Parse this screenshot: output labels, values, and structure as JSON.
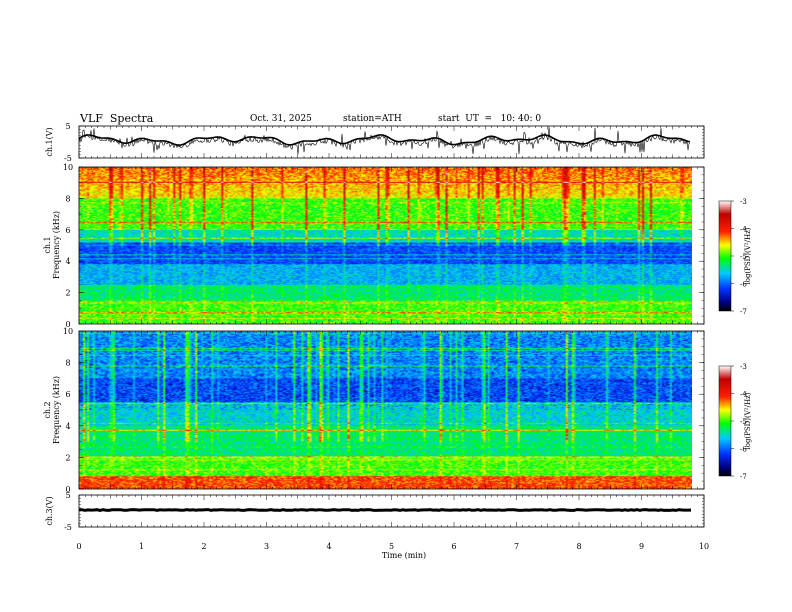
{
  "header": {
    "title": "VLF  Spectra",
    "date": "Oct. 31, 2025",
    "station": "station=ATH",
    "start": "start  UT  =   10: 40: 0"
  },
  "colors": {
    "cmap": [
      "#ffffff",
      "#b00000",
      "#ff0000",
      "#ffff00",
      "#00ff00",
      "#00c0ff",
      "#0000c0",
      "#000000"
    ]
  },
  "chart_data": [
    {
      "type": "line",
      "name": "ch1-waveform",
      "ylabel": "ch.1(V)",
      "ylim": [
        -5,
        5
      ],
      "yticks": [
        "5",
        "-5"
      ],
      "xlim": [
        0,
        10
      ]
    },
    {
      "type": "heatmap",
      "name": "ch1-spectrogram",
      "ylabel_top": "ch.1",
      "ylabel": "Frequency  (kHz)",
      "ylim": [
        0,
        10
      ],
      "yticks": [
        "0",
        "2",
        "4",
        "6",
        "8",
        "10"
      ],
      "xlim": [
        0,
        10
      ],
      "colorbar": {
        "label": "log(PSD)(V²/Hz)",
        "range": [
          -7,
          -3
        ],
        "ticks": [
          "-3",
          "-4",
          "-5",
          "-6",
          "-7"
        ]
      }
    },
    {
      "type": "heatmap",
      "name": "ch2-spectrogram",
      "ylabel_top": "ch.2",
      "ylabel": "Frequency  (kHz)",
      "ylim": [
        0,
        10
      ],
      "yticks": [
        "0",
        "2",
        "4",
        "6",
        "8",
        "10"
      ],
      "xlim": [
        0,
        10
      ],
      "colorbar": {
        "label": "log(PSD)(V²/Hz)",
        "range": [
          -7,
          -3
        ],
        "ticks": [
          "-3",
          "-4",
          "-5",
          "-6",
          "-7"
        ]
      }
    },
    {
      "type": "line",
      "name": "ch3-waveform",
      "ylabel": "ch.3(V)",
      "ylim": [
        -5,
        5
      ],
      "yticks": [
        "5",
        "-5"
      ],
      "xlim": [
        0,
        10
      ],
      "xlabel": "Time  (min)",
      "xticks": [
        "0",
        "1",
        "2",
        "3",
        "4",
        "5",
        "6",
        "7",
        "8",
        "9",
        "10"
      ]
    }
  ]
}
